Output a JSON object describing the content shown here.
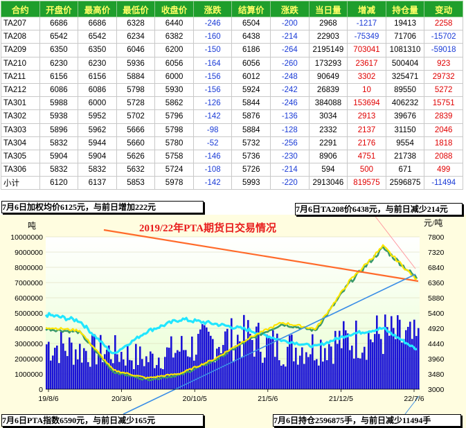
{
  "table": {
    "headers": [
      "合约",
      "开盘价",
      "最高价",
      "最低价",
      "收盘价",
      "涨跌",
      "结算价",
      "涨跌",
      "当日量",
      "增减",
      "持仓量",
      "变动"
    ],
    "rows": [
      [
        "TA207",
        "6686",
        "6686",
        "6328",
        "6440",
        "-246",
        "6504",
        "-200",
        "2968",
        "-1217",
        "19413",
        "2258"
      ],
      [
        "TA208",
        "6542",
        "6542",
        "6234",
        "6382",
        "-160",
        "6438",
        "-214",
        "22903",
        "-75349",
        "71706",
        "-15702"
      ],
      [
        "TA209",
        "6350",
        "6350",
        "6046",
        "6200",
        "-150",
        "6186",
        "-264",
        "2195149",
        "703041",
        "1081310",
        "-59018"
      ],
      [
        "TA210",
        "6230",
        "6230",
        "5936",
        "6056",
        "-164",
        "6056",
        "-260",
        "173293",
        "23617",
        "500404",
        "923"
      ],
      [
        "TA211",
        "6156",
        "6156",
        "5884",
        "6000",
        "-156",
        "6012",
        "-248",
        "90649",
        "3302",
        "325471",
        "29732"
      ],
      [
        "TA212",
        "6086",
        "6086",
        "5798",
        "5930",
        "-156",
        "5924",
        "-242",
        "26839",
        "10",
        "89550",
        "5272"
      ],
      [
        "TA301",
        "5988",
        "6000",
        "5728",
        "5862",
        "-126",
        "5844",
        "-246",
        "384088",
        "153694",
        "406232",
        "15751"
      ],
      [
        "TA302",
        "5938",
        "5952",
        "5702",
        "5796",
        "-142",
        "5876",
        "-136",
        "3034",
        "2913",
        "39676",
        "2839"
      ],
      [
        "TA303",
        "5896",
        "5962",
        "5666",
        "5798",
        "-98",
        "5884",
        "-128",
        "2332",
        "2137",
        "31150",
        "2046"
      ],
      [
        "TA304",
        "5832",
        "5944",
        "5660",
        "5780",
        "-52",
        "5732",
        "-256",
        "2291",
        "2176",
        "9554",
        "1818"
      ],
      [
        "TA305",
        "5904",
        "5904",
        "5626",
        "5758",
        "-146",
        "5736",
        "-230",
        "8906",
        "4751",
        "21738",
        "2088"
      ],
      [
        "TA306",
        "5832",
        "5832",
        "5632",
        "5724",
        "-108",
        "5726",
        "-214",
        "594",
        "500",
        "671",
        "499"
      ],
      [
        "小计",
        "6120",
        "6137",
        "5853",
        "5978",
        "-142",
        "5993",
        "-220",
        "2913046",
        "819575",
        "2596875",
        "-11494"
      ]
    ]
  },
  "notes": {
    "weighted_avg": "7月6日加权均价6125元，与前日增加222元",
    "ta208": "7月6日TA208价6438元，与前日减少214元",
    "index": "7月6日PTA指数6590元，与前日减少165元",
    "open_interest": "7月6日持仓2596875手，与前日减少11494手"
  },
  "chart_data": {
    "type": "bar",
    "title": "2019/22年PTA期货日交易情况",
    "left_unit": "吨",
    "right_unit": "元/吨",
    "left_axis": {
      "min": 0,
      "max": 10000000,
      "ticks": [
        "0",
        "1000000",
        "2000000",
        "3000000",
        "4000000",
        "5000000",
        "6000000",
        "7000000",
        "8000000",
        "9000000",
        "10000000"
      ]
    },
    "right_axis": {
      "min": 3000,
      "max": 7800,
      "ticks": [
        "3000",
        "3480",
        "3960",
        "4440",
        "4920",
        "5400",
        "5880",
        "6360",
        "6840",
        "7320",
        "7800"
      ]
    },
    "x_ticks": [
      "19/8/6",
      "20/3/6",
      "20/10/5",
      "21/5/6",
      "21/12/5",
      "22/7/6"
    ],
    "series": [
      {
        "role": "volume (bars)",
        "color": "#1a12d6",
        "x": [
          "19/8/6",
          "19/11/6",
          "20/3/6",
          "20/6/5",
          "20/10/5",
          "21/1/5",
          "21/5/6",
          "21/9/5",
          "21/12/5",
          "22/3/5",
          "22/5/5",
          "22/7/6"
        ],
        "values": [
          2900000,
          2500000,
          2400000,
          1900000,
          2600000,
          3100000,
          3300000,
          2600000,
          2800000,
          3200000,
          3500000,
          3000000
        ]
      },
      {
        "role": "open interest (cyan line)",
        "color": "#22e6ff",
        "x": [
          "19/8/6",
          "19/11/6",
          "20/3/6",
          "20/6/5",
          "20/10/5",
          "21/1/5",
          "21/5/6",
          "21/9/5",
          "21/12/5",
          "22/3/5",
          "22/5/5",
          "22/7/6"
        ],
        "values": [
          4900000,
          4500000,
          2300000,
          3800000,
          4600000,
          4300000,
          3900000,
          3200000,
          2800000,
          3600000,
          4000000,
          2600000
        ]
      },
      {
        "role": "price (yellow line)",
        "color": "#ffe600",
        "x": [
          "19/8/6",
          "19/11/6",
          "20/3/6",
          "20/6/5",
          "20/10/5",
          "21/1/5",
          "21/5/6",
          "21/9/5",
          "21/12/5",
          "22/3/5",
          "22/5/5",
          "22/7/6"
        ],
        "values": [
          4950,
          4850,
          3600,
          3350,
          3500,
          3950,
          4600,
          5100,
          4900,
          6400,
          7500,
          6440
        ]
      },
      {
        "role": "price (green line)",
        "color": "#3c9a6a",
        "x": [
          "19/8/6",
          "19/11/6",
          "20/3/6",
          "20/6/5",
          "20/10/5",
          "21/1/5",
          "21/5/6",
          "21/9/5",
          "21/12/5",
          "22/3/5",
          "22/5/5",
          "22/7/6"
        ],
        "values": [
          4900,
          4800,
          3550,
          3300,
          3450,
          3900,
          4550,
          5050,
          4850,
          6350,
          7450,
          6500
        ]
      }
    ]
  }
}
